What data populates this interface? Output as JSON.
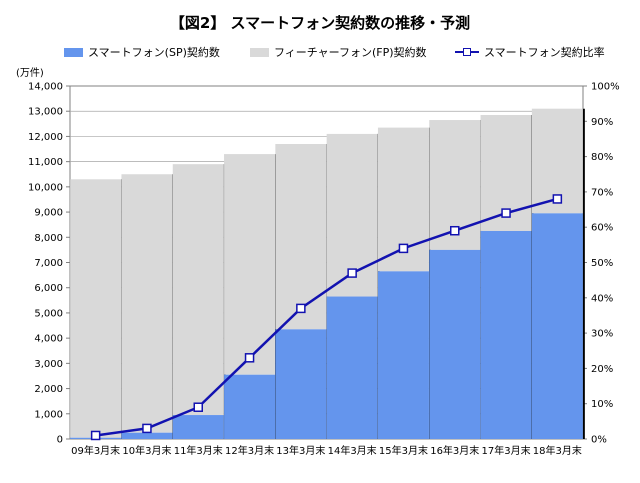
{
  "title": "【図2】 スマートフォン契約数の推移・予測",
  "legend": {
    "sp": "スマートフォン(SP)契約数",
    "fp": "フィーチャーフォン(FP)契約数",
    "ratio": "スマートフォン契約比率"
  },
  "unit_label": "(万件)",
  "colors": {
    "sp": "#6495ed",
    "fp": "#d9d9d9",
    "ratio": "#1212b0"
  },
  "chart_data": {
    "type": "bar",
    "stacked": true,
    "categories": [
      "09年3月末",
      "10年3月末",
      "11年3月末",
      "12年3月末",
      "13年3月末",
      "14年3月末",
      "15年3月末",
      "16年3月末",
      "17年3月末",
      "18年3月末"
    ],
    "series": [
      {
        "name": "スマートフォン(SP)契約数",
        "axis": "left",
        "values": [
          50,
          250,
          950,
          2550,
          4350,
          5650,
          6650,
          7500,
          8250,
          8950
        ]
      },
      {
        "name": "フィーチャーフォン(FP)契約数",
        "axis": "left",
        "values": [
          10250,
          10250,
          9950,
          8750,
          7350,
          6450,
          5700,
          5150,
          4600,
          4150
        ]
      },
      {
        "name": "スマートフォン契約比率",
        "type": "line",
        "axis": "right",
        "values": [
          0.01,
          0.03,
          0.09,
          0.23,
          0.37,
          0.47,
          0.54,
          0.59,
          0.64,
          0.68
        ]
      }
    ],
    "y_left": {
      "min": 0,
      "max": 14000,
      "step": 1000,
      "ticks": [
        "0",
        "1,000",
        "2,000",
        "3,000",
        "4,000",
        "5,000",
        "6,000",
        "7,000",
        "8,000",
        "9,000",
        "10,000",
        "11,000",
        "12,000",
        "13,000",
        "14,000"
      ]
    },
    "y_right": {
      "min": 0,
      "max": 1,
      "step": 0.1,
      "ticks": [
        "0%",
        "10%",
        "20%",
        "30%",
        "40%",
        "50%",
        "60%",
        "70%",
        "80%",
        "90%",
        "100%"
      ]
    },
    "grid": true,
    "legend_position": "top"
  }
}
